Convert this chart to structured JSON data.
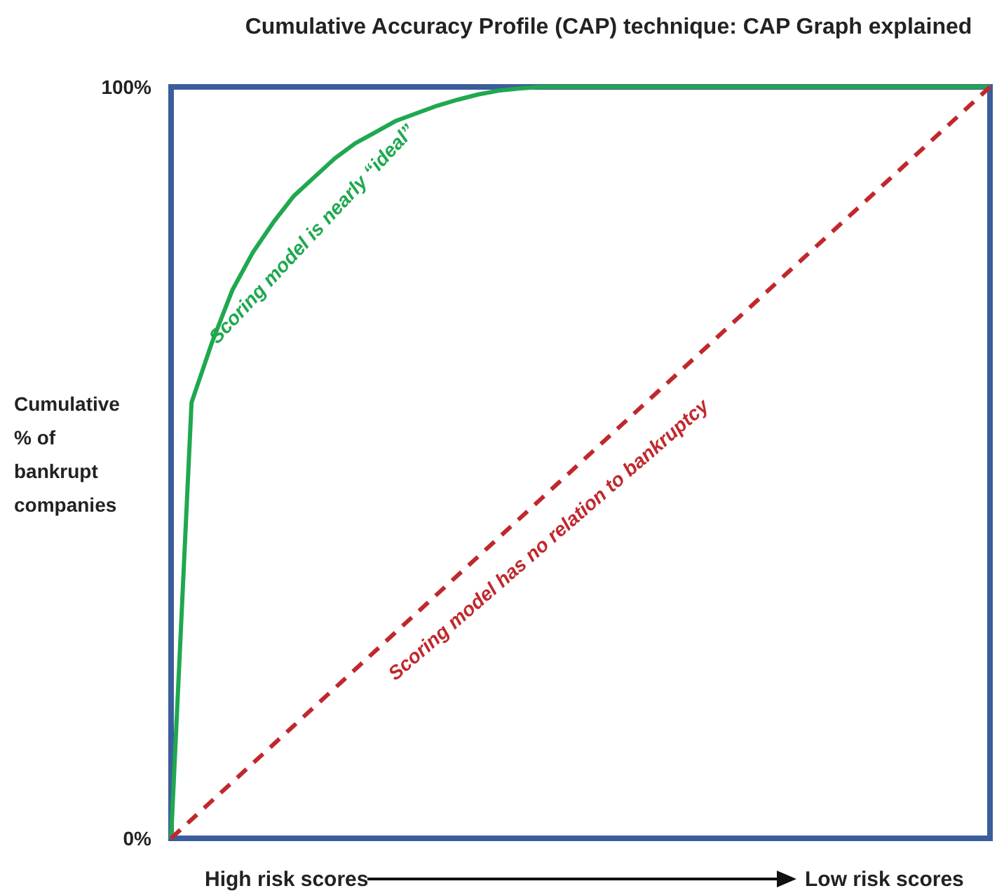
{
  "chart_data": {
    "type": "line",
    "title": "Cumulative Accuracy Profile (CAP) technique:  CAP Graph explained",
    "xlabel": "High risk scores",
    "ylabel": "Cumulative\n% of\nbankrupt\ncompanies",
    "categories": [
      null,
      null,
      null,
      null,
      null,
      null,
      null,
      null,
      null,
      null,
      null,
      null,
      null,
      null,
      null,
      null,
      null,
      null,
      null,
      null,
      null,
      null,
      null,
      null,
      null,
      null,
      null,
      null,
      null,
      null,
      null,
      null,
      null,
      null,
      null,
      null,
      null,
      null,
      null,
      null,
      null
    ],
    "series": [
      {
        "color": "#1fa84f",
        "line_style": "solid",
        "values": [
          0,
          58,
          66,
          73,
          78,
          82,
          85.5,
          88,
          90.5,
          92.5,
          94,
          95.5,
          96.5,
          97.5,
          98.3,
          99,
          99.5,
          99.8,
          100,
          100,
          100,
          100,
          100,
          100,
          100,
          100,
          100,
          100,
          100,
          100,
          100,
          100,
          100,
          100,
          100,
          100,
          100,
          100,
          100,
          100,
          100
        ]
      },
      {
        "color": "#c0282d",
        "line_style": "dashed",
        "values": [
          0,
          2.5,
          5,
          7.5,
          10,
          12.5,
          15,
          17.5,
          20,
          22.5,
          25,
          27.5,
          30,
          32.5,
          35,
          37.5,
          40,
          42.5,
          45,
          47.5,
          50,
          52.5,
          55,
          57.5,
          60,
          62.5,
          65,
          67.5,
          70,
          72.5,
          75,
          77.5,
          80,
          82.5,
          85,
          87.5,
          90,
          92.5,
          95,
          97.5,
          100
        ]
      }
    ],
    "ylim": [
      0,
      100
    ],
    "yticks": [
      {
        "value": 0,
        "label": "0%"
      },
      {
        "value": 100,
        "label": "100%"
      }
    ],
    "tick_labels": "y",
    "annotations": [
      "Scoring model is nearly “ideal”",
      "Scoring model has no relation to bankruptcy",
      "Low risk scores"
    ]
  }
}
